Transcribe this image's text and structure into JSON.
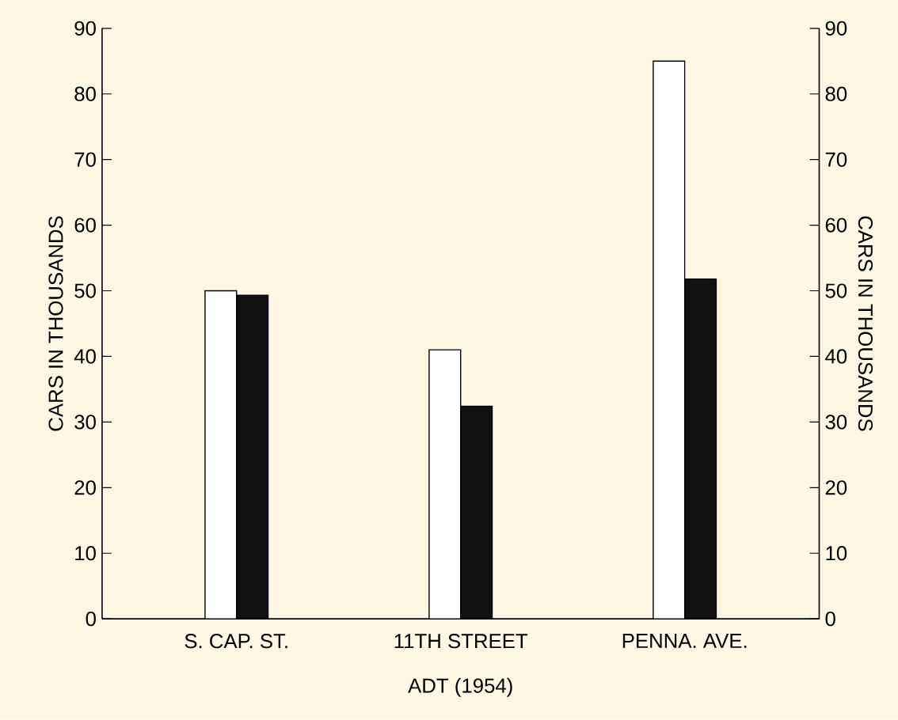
{
  "chart_data": {
    "type": "bar",
    "xlabel": "ADT (1954)",
    "ylabel": "CARS IN THOUSANDS",
    "y2label": "CARS IN THOUSANDS",
    "categories": [
      "S. CAP. ST.",
      "11TH STREET",
      "PENNA. AVE."
    ],
    "series": [
      {
        "color": "#ffffff",
        "values": [
          50,
          41,
          85
        ]
      },
      {
        "color": "#111111",
        "values": [
          49.3,
          32.4,
          51.8
        ]
      }
    ],
    "ylim": [
      0,
      90
    ],
    "yticks": [
      0,
      10,
      20,
      30,
      40,
      50,
      60,
      70,
      80,
      90
    ],
    "y2lim": [
      0,
      90
    ],
    "y2ticks": [
      0,
      10,
      20,
      30,
      40,
      50,
      60,
      70,
      80,
      90
    ],
    "grid": false
  }
}
